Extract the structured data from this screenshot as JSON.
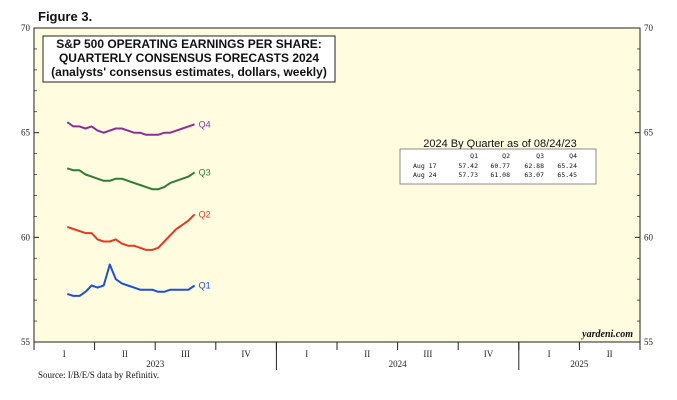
{
  "figure_label": "Figure 3.",
  "source": "Source: I/B/E/S data by Refinitiv.",
  "watermark": "yardeni.com",
  "chart_data": {
    "type": "line",
    "title": "S&P 500 OPERATING EARNINGS PER SHARE:",
    "subtitle_lines": [
      "QUARTERLY CONSENSUS FORECASTS 2024",
      "(analysts' consensus estimates, dollars, weekly)"
    ],
    "ylim": [
      55,
      70
    ],
    "y_ticks": [
      55,
      60,
      65,
      70
    ],
    "x_quarters": [
      {
        "label": "I",
        "year": "2023"
      },
      {
        "label": "II",
        "year": "2023"
      },
      {
        "label": "III",
        "year": "2023"
      },
      {
        "label": "IV",
        "year": "2023"
      },
      {
        "label": "I",
        "year": "2024"
      },
      {
        "label": "II",
        "year": "2024"
      },
      {
        "label": "III",
        "year": "2024"
      },
      {
        "label": "IV",
        "year": "2024"
      },
      {
        "label": "I",
        "year": "2025"
      },
      {
        "label": "II",
        "year": "2025"
      }
    ],
    "years": [
      {
        "label": "2023",
        "start": 0,
        "end": 4
      },
      {
        "label": "2024",
        "start": 4,
        "end": 8
      },
      {
        "label": "2025",
        "start": 8,
        "end": 10
      }
    ],
    "series": [
      {
        "name": "Q4",
        "color": "#8b2f9c",
        "x": [
          0.55,
          0.65,
          0.75,
          0.85,
          0.95,
          1.05,
          1.15,
          1.25,
          1.35,
          1.45,
          1.55,
          1.65,
          1.75,
          1.85,
          1.95,
          2.05,
          2.15,
          2.25,
          2.35,
          2.45,
          2.55,
          2.65
        ],
        "values": [
          65.5,
          65.3,
          65.3,
          65.2,
          65.3,
          65.1,
          65.0,
          65.1,
          65.2,
          65.2,
          65.1,
          65.0,
          65.0,
          64.9,
          64.9,
          64.9,
          65.0,
          65.0,
          65.1,
          65.2,
          65.3,
          65.4
        ]
      },
      {
        "name": "Q3",
        "color": "#2e7d32",
        "x": [
          0.55,
          0.65,
          0.75,
          0.85,
          0.95,
          1.05,
          1.15,
          1.25,
          1.35,
          1.45,
          1.55,
          1.65,
          1.75,
          1.85,
          1.95,
          2.05,
          2.15,
          2.25,
          2.35,
          2.45,
          2.55,
          2.65
        ],
        "values": [
          63.3,
          63.2,
          63.2,
          63.0,
          62.9,
          62.8,
          62.7,
          62.7,
          62.8,
          62.8,
          62.7,
          62.6,
          62.5,
          62.4,
          62.3,
          62.3,
          62.4,
          62.6,
          62.7,
          62.8,
          62.9,
          63.1
        ]
      },
      {
        "name": "Q2",
        "color": "#e53922",
        "x": [
          0.55,
          0.65,
          0.75,
          0.85,
          0.95,
          1.05,
          1.15,
          1.25,
          1.35,
          1.45,
          1.55,
          1.65,
          1.75,
          1.85,
          1.95,
          2.05,
          2.15,
          2.25,
          2.35,
          2.45,
          2.55,
          2.65
        ],
        "values": [
          60.5,
          60.4,
          60.3,
          60.2,
          60.2,
          59.9,
          59.8,
          59.8,
          59.9,
          59.7,
          59.6,
          59.6,
          59.5,
          59.4,
          59.4,
          59.5,
          59.8,
          60.1,
          60.4,
          60.6,
          60.8,
          61.1
        ]
      },
      {
        "name": "Q1",
        "color": "#1d4fd8",
        "x": [
          0.55,
          0.65,
          0.75,
          0.85,
          0.95,
          1.05,
          1.15,
          1.25,
          1.35,
          1.45,
          1.55,
          1.65,
          1.75,
          1.85,
          1.95,
          2.05,
          2.15,
          2.25,
          2.35,
          2.45,
          2.55,
          2.65
        ],
        "values": [
          57.3,
          57.2,
          57.2,
          57.4,
          57.7,
          57.6,
          57.7,
          58.7,
          58.0,
          57.8,
          57.7,
          57.6,
          57.5,
          57.5,
          57.5,
          57.4,
          57.4,
          57.5,
          57.5,
          57.5,
          57.5,
          57.7
        ]
      }
    ],
    "table": {
      "title": "2024 By Quarter as of 08/24/23",
      "headers": [
        "",
        "Q1",
        "Q2",
        "Q3",
        "Q4"
      ],
      "rows": [
        [
          "Aug 17",
          "57.42",
          "60.77",
          "62.88",
          "65.24"
        ],
        [
          "Aug 24",
          "57.73",
          "61.08",
          "63.07",
          "65.45"
        ]
      ]
    }
  }
}
